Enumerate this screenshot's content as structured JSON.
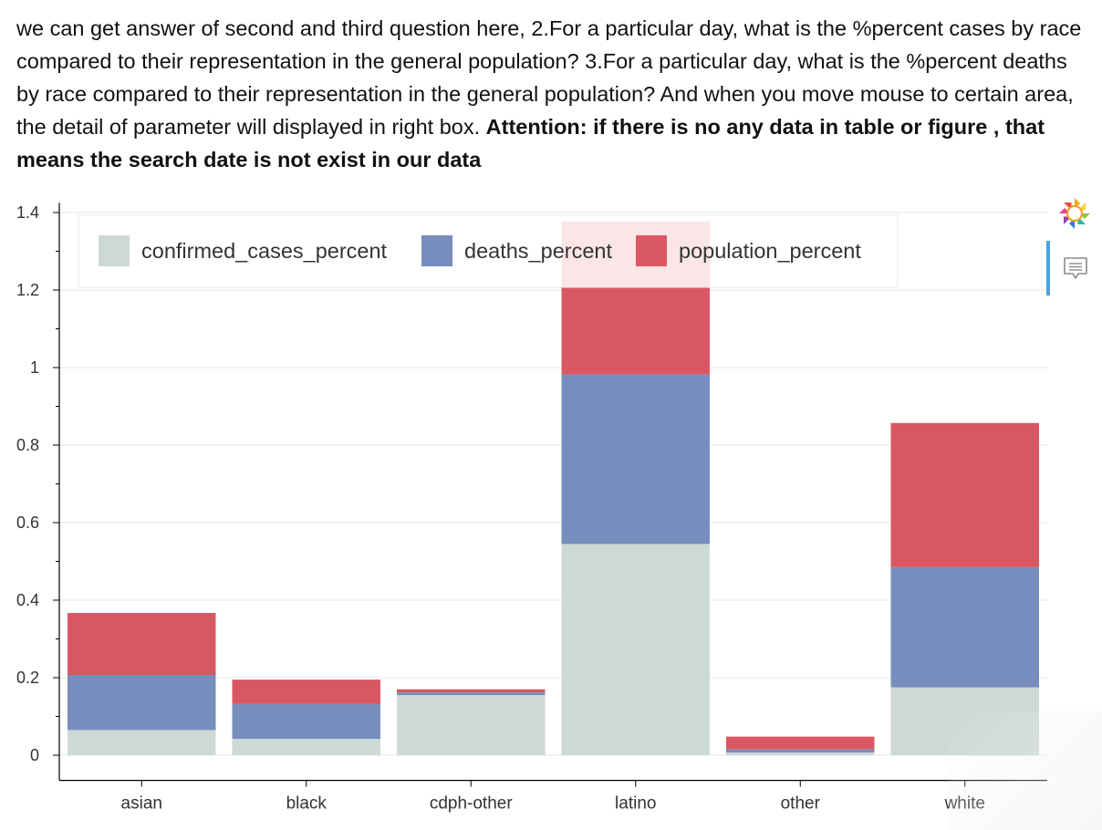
{
  "intro": {
    "text": "we can get answer of second and third question here, 2.For a particular day, what is the %percent cases by race compared to their representation in the general population? 3.For a particular day, what is the %percent deaths by race compared to their representation in the general population? And when you move mouse to certain area, the detail of parameter will displayed in right box. ",
    "attention": "Attention: if there is no any data in table or figure , that means the search date is not exist in our data"
  },
  "toolbar": {
    "logo_icon": "bokeh-logo-icon",
    "comment_icon": "hover-tool-icon",
    "accent_color": "#4aa3df"
  },
  "chart_data": {
    "type": "bar",
    "stacked": true,
    "categories": [
      "asian",
      "black",
      "cdph-other",
      "latino",
      "other",
      "white"
    ],
    "series": [
      {
        "name": "confirmed_cases_percent",
        "color": "#cdd9d5",
        "values": [
          0.065,
          0.042,
          0.155,
          0.545,
          0.007,
          0.175
        ]
      },
      {
        "name": "deaths_percent",
        "color": "#768dbd",
        "values": [
          0.142,
          0.09,
          0.007,
          0.437,
          0.008,
          0.31
        ]
      },
      {
        "name": "population_percent",
        "color": "#d95762",
        "values": [
          0.16,
          0.063,
          0.008,
          0.395,
          0.033,
          0.372
        ]
      }
    ],
    "ylim": [
      -0.065,
      1.425
    ],
    "yticks": [
      "0",
      "0.2",
      "0.4",
      "0.6",
      "0.8",
      "1",
      "1.2",
      "1.4"
    ],
    "ytick_values": [
      0,
      0.2,
      0.4,
      0.6,
      0.8,
      1.0,
      1.2,
      1.4
    ],
    "grid": true,
    "legend_position": "top-left"
  }
}
